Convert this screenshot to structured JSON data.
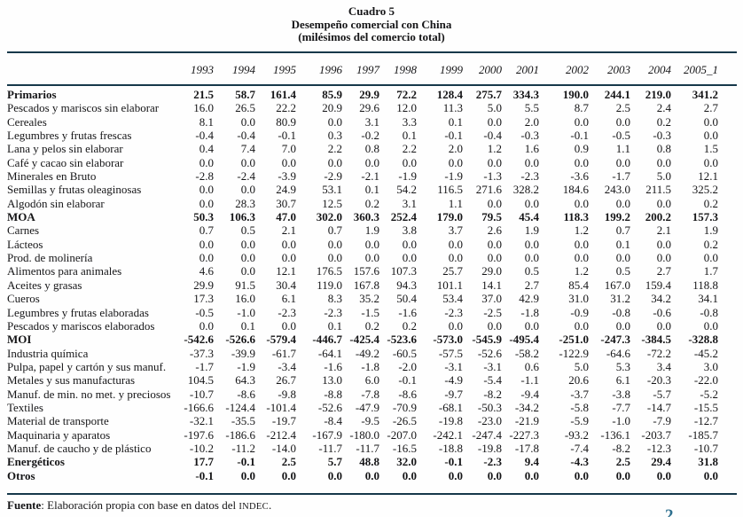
{
  "title": {
    "line1": "Cuadro 5",
    "line2": "Desempeño comercial con China",
    "line3": "(milésimos del comercio total)"
  },
  "table": {
    "years": [
      "1993",
      "1994",
      "1995",
      "1996",
      "1997",
      "1998",
      "1999",
      "2000",
      "2001",
      "2002",
      "2003",
      "2004",
      "2005_1"
    ],
    "rows": [
      {
        "label": "Primarios",
        "bold": true,
        "values": [
          "21.5",
          "58.7",
          "161.4",
          "85.9",
          "29.9",
          "72.2",
          "128.4",
          "275.7",
          "334.3",
          "190.0",
          "244.1",
          "219.0",
          "341.2"
        ]
      },
      {
        "label": "Pescados y mariscos sin elaborar",
        "bold": false,
        "values": [
          "16.0",
          "26.5",
          "22.2",
          "20.9",
          "29.6",
          "12.0",
          "11.3",
          "5.0",
          "5.5",
          "8.7",
          "2.5",
          "2.4",
          "2.7"
        ]
      },
      {
        "label": "Cereales",
        "bold": false,
        "values": [
          "8.1",
          "0.0",
          "80.9",
          "0.0",
          "3.1",
          "3.3",
          "0.1",
          "0.0",
          "2.0",
          "0.0",
          "0.0",
          "0.2",
          "0.0"
        ]
      },
      {
        "label": "Legumbres y frutas frescas",
        "bold": false,
        "values": [
          "-0.4",
          "-0.4",
          "-0.1",
          "0.3",
          "-0.2",
          "0.1",
          "-0.1",
          "-0.4",
          "-0.3",
          "-0.1",
          "-0.5",
          "-0.3",
          "0.0"
        ]
      },
      {
        "label": "Lana y pelos sin elaborar",
        "bold": false,
        "values": [
          "0.4",
          "7.4",
          "7.0",
          "2.2",
          "0.8",
          "2.2",
          "2.0",
          "1.2",
          "1.6",
          "0.9",
          "1.1",
          "0.8",
          "1.5"
        ]
      },
      {
        "label": "Café y cacao sin elaborar",
        "bold": false,
        "values": [
          "0.0",
          "0.0",
          "0.0",
          "0.0",
          "0.0",
          "0.0",
          "0.0",
          "0.0",
          "0.0",
          "0.0",
          "0.0",
          "0.0",
          "0.0"
        ]
      },
      {
        "label": "Minerales en Bruto",
        "bold": false,
        "values": [
          "-2.8",
          "-2.4",
          "-3.9",
          "-2.9",
          "-2.1",
          "-1.9",
          "-1.9",
          "-1.3",
          "-2.3",
          "-3.6",
          "-1.7",
          "5.0",
          "12.1"
        ]
      },
      {
        "label": "Semillas y frutas oleaginosas",
        "bold": false,
        "values": [
          "0.0",
          "0.0",
          "24.9",
          "53.1",
          "0.1",
          "54.2",
          "116.5",
          "271.6",
          "328.2",
          "184.6",
          "243.0",
          "211.5",
          "325.2"
        ]
      },
      {
        "label": "Algodón sin elaborar",
        "bold": false,
        "values": [
          "0.0",
          "28.3",
          "30.7",
          "12.5",
          "0.2",
          "3.1",
          "1.1",
          "0.0",
          "0.0",
          "0.0",
          "0.0",
          "0.0",
          "0.2"
        ]
      },
      {
        "label": "MOA",
        "bold": true,
        "values": [
          "50.3",
          "106.3",
          "47.0",
          "302.0",
          "360.3",
          "252.4",
          "179.0",
          "79.5",
          "45.4",
          "118.3",
          "199.2",
          "200.2",
          "157.3"
        ]
      },
      {
        "label": "Carnes",
        "bold": false,
        "values": [
          "0.7",
          "0.5",
          "2.1",
          "0.7",
          "1.9",
          "3.8",
          "3.7",
          "2.6",
          "1.9",
          "1.2",
          "0.7",
          "2.1",
          "1.9"
        ]
      },
      {
        "label": "Lácteos",
        "bold": false,
        "values": [
          "0.0",
          "0.0",
          "0.0",
          "0.0",
          "0.0",
          "0.0",
          "0.0",
          "0.0",
          "0.0",
          "0.0",
          "0.1",
          "0.0",
          "0.2"
        ]
      },
      {
        "label": "Prod. de molinería",
        "bold": false,
        "values": [
          "0.0",
          "0.0",
          "0.0",
          "0.0",
          "0.0",
          "0.0",
          "0.0",
          "0.0",
          "0.0",
          "0.0",
          "0.0",
          "0.0",
          "0.0"
        ]
      },
      {
        "label": "Alimentos para animales",
        "bold": false,
        "values": [
          "4.6",
          "0.0",
          "12.1",
          "176.5",
          "157.6",
          "107.3",
          "25.7",
          "29.0",
          "0.5",
          "1.2",
          "0.5",
          "2.7",
          "1.7"
        ]
      },
      {
        "label": "Aceites y grasas",
        "bold": false,
        "values": [
          "29.9",
          "91.5",
          "30.4",
          "119.0",
          "167.8",
          "94.3",
          "101.1",
          "14.1",
          "2.7",
          "85.4",
          "167.0",
          "159.4",
          "118.8"
        ]
      },
      {
        "label": "Cueros",
        "bold": false,
        "values": [
          "17.3",
          "16.0",
          "6.1",
          "8.3",
          "35.2",
          "50.4",
          "53.4",
          "37.0",
          "42.9",
          "31.0",
          "31.2",
          "34.2",
          "34.1"
        ]
      },
      {
        "label": "Legumbres y frutas elaboradas",
        "bold": false,
        "values": [
          "-0.5",
          "-1.0",
          "-2.3",
          "-2.3",
          "-1.5",
          "-1.6",
          "-2.3",
          "-2.5",
          "-1.8",
          "-0.9",
          "-0.8",
          "-0.6",
          "-0.8"
        ]
      },
      {
        "label": "Pescados y mariscos elaborados",
        "bold": false,
        "values": [
          "0.0",
          "0.1",
          "0.0",
          "0.1",
          "0.2",
          "0.2",
          "0.0",
          "0.0",
          "0.0",
          "0.0",
          "0.0",
          "0.0",
          "0.0"
        ]
      },
      {
        "label": "MOI",
        "bold": true,
        "values": [
          "-542.6",
          "-526.6",
          "-579.4",
          "-446.7",
          "-425.4",
          "-523.6",
          "-573.0",
          "-545.9",
          "-495.4",
          "-251.0",
          "-247.3",
          "-384.5",
          "-328.8"
        ]
      },
      {
        "label": "Industria química",
        "bold": false,
        "values": [
          "-37.3",
          "-39.9",
          "-61.7",
          "-64.1",
          "-49.2",
          "-60.5",
          "-57.5",
          "-52.6",
          "-58.2",
          "-122.9",
          "-64.6",
          "-72.2",
          "-45.2"
        ]
      },
      {
        "label": "Pulpa, papel y cartón y sus manuf.",
        "bold": false,
        "values": [
          "-1.7",
          "-1.9",
          "-3.4",
          "-1.6",
          "-1.8",
          "-2.0",
          "-3.1",
          "-3.1",
          "0.6",
          "5.0",
          "5.3",
          "3.4",
          "3.0"
        ]
      },
      {
        "label": "Metales y sus manufacturas",
        "bold": false,
        "values": [
          "104.5",
          "64.3",
          "26.7",
          "13.0",
          "6.0",
          "-0.1",
          "-4.9",
          "-5.4",
          "-1.1",
          "20.6",
          "6.1",
          "-20.3",
          "-22.0"
        ]
      },
      {
        "label": "Manuf. de min. no met. y preciosos",
        "bold": false,
        "values": [
          "-10.7",
          "-8.6",
          "-9.8",
          "-8.8",
          "-7.8",
          "-8.6",
          "-9.7",
          "-8.2",
          "-9.4",
          "-3.7",
          "-3.8",
          "-5.7",
          "-5.2"
        ]
      },
      {
        "label": "Textiles",
        "bold": false,
        "values": [
          "-166.6",
          "-124.4",
          "-101.4",
          "-52.6",
          "-47.9",
          "-70.9",
          "-68.1",
          "-50.3",
          "-34.2",
          "-5.8",
          "-7.7",
          "-14.7",
          "-15.5"
        ]
      },
      {
        "label": "Material de transporte",
        "bold": false,
        "values": [
          "-32.1",
          "-35.5",
          "-19.7",
          "-8.4",
          "-9.5",
          "-26.5",
          "-19.8",
          "-23.0",
          "-21.9",
          "-5.9",
          "-1.0",
          "-7.9",
          "-12.7"
        ]
      },
      {
        "label": "Maquinaria y aparatos",
        "bold": false,
        "values": [
          "-197.6",
          "-186.6",
          "-212.4",
          "-167.9",
          "-180.0",
          "-207.0",
          "-242.1",
          "-247.4",
          "-227.3",
          "-93.2",
          "-136.1",
          "-203.7",
          "-185.7"
        ]
      },
      {
        "label": "Manuf. de caucho y de plástico",
        "bold": false,
        "values": [
          "-10.2",
          "-11.2",
          "-14.0",
          "-11.7",
          "-11.7",
          "-16.5",
          "-18.8",
          "-19.8",
          "-17.8",
          "-7.4",
          "-8.2",
          "-12.3",
          "-10.7"
        ]
      },
      {
        "label": "Energéticos",
        "bold": true,
        "values": [
          "17.7",
          "-0.1",
          "2.5",
          "5.7",
          "48.8",
          "32.0",
          "-0.1",
          "-2.3",
          "9.4",
          "-4.3",
          "2.5",
          "29.4",
          "31.8"
        ]
      },
      {
        "label": "Otros",
        "bold": true,
        "values": [
          "-0.1",
          "0.0",
          "0.0",
          "0.0",
          "0.0",
          "0.0",
          "0.0",
          "0.0",
          "0.0",
          "0.0",
          "0.0",
          "0.0",
          "0.0"
        ]
      }
    ]
  },
  "footer": {
    "source_label": "Fuente",
    "source_mid": ": Elaboración propia con base en datos del ",
    "source_smallcaps": "INDEC",
    "source_end": "."
  },
  "page_mark": "2",
  "colors": {
    "rule": "#16384a",
    "text": "#151517",
    "page_mark": "#2d6f8e"
  }
}
